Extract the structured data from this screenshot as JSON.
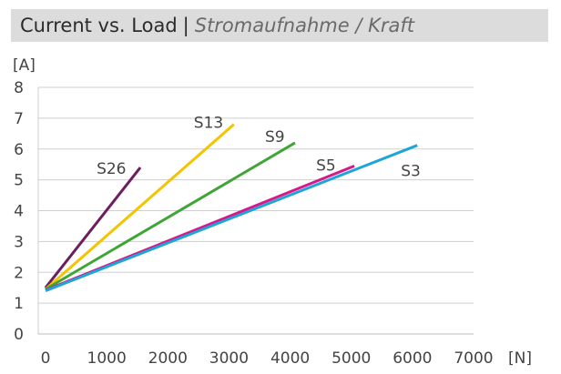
{
  "title": "Current vs. Load",
  "separator": "|",
  "subtitle": "Stromaufnahme / Kraft",
  "chart_data": {
    "type": "line",
    "title": "Current vs. Load | Stromaufnahme / Kraft",
    "xlabel": "[N]",
    "ylabel": "[A]",
    "xlim": [
      0,
      7000
    ],
    "ylim": [
      0,
      8
    ],
    "xticks": [
      "0",
      "1000",
      "2000",
      "3000",
      "4000",
      "5000",
      "6000",
      "7000"
    ],
    "yticks": [
      "0",
      "1",
      "2",
      "3",
      "4",
      "5",
      "6",
      "7",
      "8"
    ],
    "grid": "horizontal",
    "series": [
      {
        "name": "S26",
        "color": "#6b1f5e",
        "x": [
          0,
          1550
        ],
        "y": [
          1.5,
          5.4
        ]
      },
      {
        "name": "S13",
        "color": "#f2c500",
        "x": [
          0,
          3080
        ],
        "y": [
          1.45,
          6.8
        ]
      },
      {
        "name": "S9",
        "color": "#3fa535",
        "x": [
          0,
          4080
        ],
        "y": [
          1.45,
          6.2
        ]
      },
      {
        "name": "S5",
        "color": "#d6198a",
        "x": [
          0,
          5050
        ],
        "y": [
          1.42,
          5.45
        ]
      },
      {
        "name": "S3",
        "color": "#1ea5d8",
        "x": [
          0,
          6080
        ],
        "y": [
          1.4,
          6.12
        ]
      }
    ]
  }
}
